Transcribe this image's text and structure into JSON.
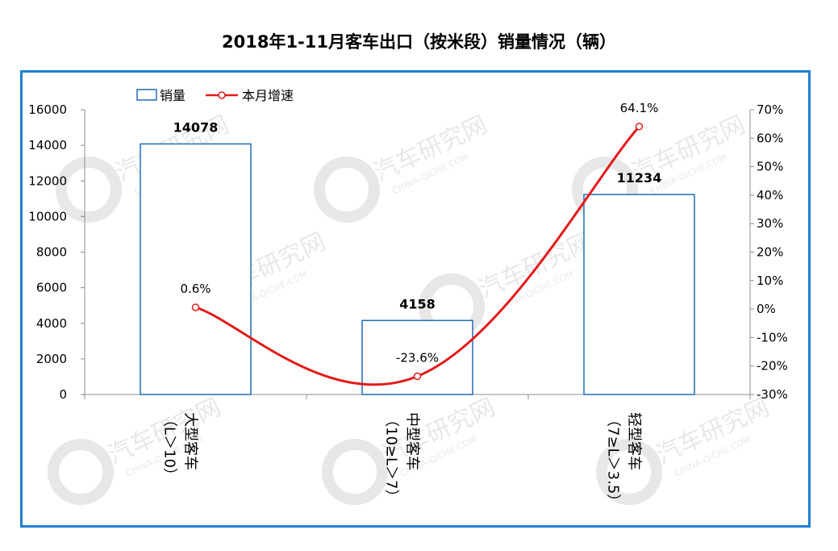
{
  "chart_data": {
    "type": "bar",
    "title": "2018年1-11月客车出口（按米段）销量情况（辆）",
    "categories": [
      [
        "大型客车",
        "（L＞10）"
      ],
      [
        "中型客车",
        "（10≥L＞7）"
      ],
      [
        "轻型客车",
        "（7≥L＞3.5）"
      ]
    ],
    "y_left": {
      "min": 0,
      "max": 16000,
      "ticks": [
        "0",
        "2000",
        "4000",
        "6000",
        "8000",
        "10000",
        "12000",
        "14000",
        "16000"
      ]
    },
    "y_right": {
      "min": -30,
      "max": 70,
      "ticks": [
        "-30%",
        "-20%",
        "-10%",
        "0%",
        "10%",
        "20%",
        "30%",
        "40%",
        "50%",
        "60%",
        "70%"
      ]
    },
    "series": [
      {
        "name": "销量",
        "type": "bar",
        "axis": "left",
        "color": "#1f6fb5",
        "values": [
          14078,
          4158,
          11234
        ],
        "labels": [
          "14078",
          "4158",
          "11234"
        ]
      },
      {
        "name": "本月增速",
        "type": "line",
        "axis": "right",
        "color": "#e31b1b",
        "values": [
          0.6,
          -23.6,
          64.1
        ],
        "labels": [
          "0.6%",
          "-23.6%",
          "64.1%"
        ]
      }
    ],
    "legend_position": "top-left",
    "grid": false
  },
  "watermark": {
    "text": "汽车研究网",
    "subtext": "CHINA-QICHE.COM"
  }
}
